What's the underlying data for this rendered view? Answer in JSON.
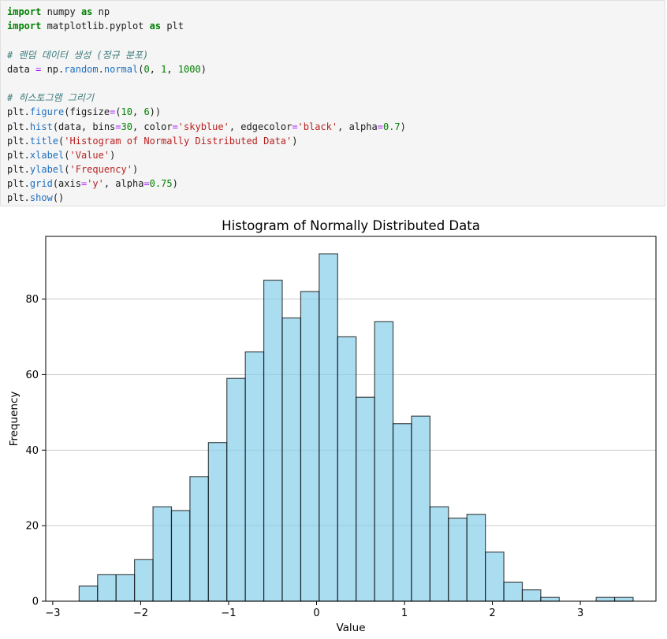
{
  "code": {
    "lines": [
      [
        {
          "t": "import",
          "c": "kw"
        },
        {
          "t": " numpy "
        },
        {
          "t": "as",
          "c": "kw"
        },
        {
          "t": " np"
        }
      ],
      [
        {
          "t": "import",
          "c": "kw"
        },
        {
          "t": " matplotlib.pyplot "
        },
        {
          "t": "as",
          "c": "kw"
        },
        {
          "t": " plt"
        }
      ],
      [],
      [
        {
          "t": "# 랜덤 데이터 생성 (정규 분포)",
          "c": "cmt"
        }
      ],
      [
        {
          "t": "data "
        },
        {
          "t": "=",
          "c": "op"
        },
        {
          "t": " np."
        },
        {
          "t": "random",
          "c": "attr"
        },
        {
          "t": "."
        },
        {
          "t": "normal",
          "c": "attr"
        },
        {
          "t": "("
        },
        {
          "t": "0",
          "c": "num"
        },
        {
          "t": ", "
        },
        {
          "t": "1",
          "c": "num"
        },
        {
          "t": ", "
        },
        {
          "t": "1000",
          "c": "num"
        },
        {
          "t": ")"
        }
      ],
      [],
      [
        {
          "t": "# 히스토그램 그리기",
          "c": "cmt"
        }
      ],
      [
        {
          "t": "plt."
        },
        {
          "t": "figure",
          "c": "attr"
        },
        {
          "t": "(figsize"
        },
        {
          "t": "=",
          "c": "op"
        },
        {
          "t": "("
        },
        {
          "t": "10",
          "c": "num"
        },
        {
          "t": ", "
        },
        {
          "t": "6",
          "c": "num"
        },
        {
          "t": "))"
        }
      ],
      [
        {
          "t": "plt."
        },
        {
          "t": "hist",
          "c": "attr"
        },
        {
          "t": "(data, bins"
        },
        {
          "t": "=",
          "c": "op"
        },
        {
          "t": "30",
          "c": "num"
        },
        {
          "t": ", color"
        },
        {
          "t": "=",
          "c": "op"
        },
        {
          "t": "'skyblue'",
          "c": "str"
        },
        {
          "t": ", edgecolor"
        },
        {
          "t": "=",
          "c": "op"
        },
        {
          "t": "'black'",
          "c": "str"
        },
        {
          "t": ", alpha"
        },
        {
          "t": "=",
          "c": "op"
        },
        {
          "t": "0.7",
          "c": "num"
        },
        {
          "t": ")"
        }
      ],
      [
        {
          "t": "plt."
        },
        {
          "t": "title",
          "c": "attr"
        },
        {
          "t": "("
        },
        {
          "t": "'Histogram of Normally Distributed Data'",
          "c": "str"
        },
        {
          "t": ")"
        }
      ],
      [
        {
          "t": "plt."
        },
        {
          "t": "xlabel",
          "c": "attr"
        },
        {
          "t": "("
        },
        {
          "t": "'Value'",
          "c": "str"
        },
        {
          "t": ")"
        }
      ],
      [
        {
          "t": "plt."
        },
        {
          "t": "ylabel",
          "c": "attr"
        },
        {
          "t": "("
        },
        {
          "t": "'Frequency'",
          "c": "str"
        },
        {
          "t": ")"
        }
      ],
      [
        {
          "t": "plt."
        },
        {
          "t": "grid",
          "c": "attr"
        },
        {
          "t": "(axis"
        },
        {
          "t": "=",
          "c": "op"
        },
        {
          "t": "'y'",
          "c": "str"
        },
        {
          "t": ", alpha"
        },
        {
          "t": "=",
          "c": "op"
        },
        {
          "t": "0.75",
          "c": "num"
        },
        {
          "t": ")"
        }
      ],
      [
        {
          "t": "plt."
        },
        {
          "t": "show",
          "c": "attr"
        },
        {
          "t": "()"
        }
      ]
    ]
  },
  "chart_data": {
    "type": "bar",
    "title": "Histogram of Normally Distributed Data",
    "xlabel": "Value",
    "ylabel": "Frequency",
    "xlim": [
      -3.08,
      3.86
    ],
    "ylim": [
      0,
      96.6
    ],
    "xticks": [
      -3,
      -2,
      -1,
      0,
      1,
      2,
      3
    ],
    "xtick_labels": [
      "−3",
      "−2",
      "−1",
      "0",
      "1",
      "2",
      "3"
    ],
    "yticks": [
      0,
      20,
      40,
      60,
      80
    ],
    "ytick_labels": [
      "0",
      "20",
      "40",
      "60",
      "80"
    ],
    "bin_start": -2.7,
    "bin_width": 0.21,
    "counts": [
      4,
      7,
      7,
      11,
      25,
      24,
      33,
      42,
      59,
      66,
      85,
      75,
      82,
      92,
      70,
      54,
      74,
      47,
      49,
      25,
      22,
      23,
      13,
      5,
      3,
      1,
      0,
      0,
      1,
      1
    ],
    "bar_color": "#87ceeb",
    "edge_color": "#000000",
    "alpha": 0.7,
    "grid": "y"
  }
}
